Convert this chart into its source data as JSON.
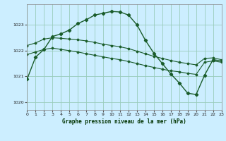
{
  "title": "Graphe pression niveau de la mer (hPa)",
  "bg_color": "#cceeff",
  "grid_color": "#99ccbb",
  "line_color": "#1a5c2a",
  "xlim": [
    0,
    23
  ],
  "ylim": [
    1019.7,
    1023.8
  ],
  "yticks": [
    1020,
    1021,
    1022,
    1023
  ],
  "xticks": [
    0,
    1,
    2,
    3,
    4,
    5,
    6,
    7,
    8,
    9,
    10,
    11,
    12,
    13,
    14,
    15,
    16,
    17,
    18,
    19,
    20,
    21,
    22,
    23
  ],
  "series1_x": [
    0,
    1,
    2,
    3,
    4,
    5,
    6,
    7,
    8,
    9,
    10,
    11,
    12,
    13,
    14,
    15,
    16,
    17,
    18,
    19,
    20,
    21,
    22,
    23
  ],
  "series1_y": [
    1020.9,
    1021.75,
    1022.05,
    1022.55,
    1022.65,
    1022.8,
    1023.05,
    1023.2,
    1023.38,
    1023.45,
    1023.52,
    1023.5,
    1023.38,
    1023.0,
    1022.4,
    1021.9,
    1021.5,
    1021.1,
    1020.75,
    1020.35,
    1020.3,
    1021.05,
    1021.65,
    1021.6
  ],
  "series2_x": [
    0,
    1,
    2,
    3,
    4,
    5,
    6,
    7,
    8,
    9,
    10,
    11,
    12,
    13,
    14,
    15,
    16,
    17,
    18,
    19,
    20,
    21,
    22,
    23
  ],
  "series2_y": [
    1022.2,
    1022.3,
    1022.45,
    1022.5,
    1022.48,
    1022.45,
    1022.42,
    1022.38,
    1022.32,
    1022.25,
    1022.2,
    1022.15,
    1022.08,
    1021.98,
    1021.88,
    1021.78,
    1021.7,
    1021.62,
    1021.55,
    1021.5,
    1021.45,
    1021.7,
    1021.72,
    1021.65
  ],
  "series3_x": [
    0,
    1,
    2,
    3,
    4,
    5,
    6,
    7,
    8,
    9,
    10,
    11,
    12,
    13,
    14,
    15,
    16,
    17,
    18,
    19,
    20,
    21,
    22,
    23
  ],
  "series3_y": [
    1021.85,
    1021.95,
    1022.05,
    1022.1,
    1022.05,
    1022.0,
    1021.95,
    1021.88,
    1021.82,
    1021.76,
    1021.7,
    1021.65,
    1021.58,
    1021.5,
    1021.42,
    1021.35,
    1021.28,
    1021.22,
    1021.18,
    1021.12,
    1021.08,
    1021.55,
    1021.6,
    1021.55
  ]
}
